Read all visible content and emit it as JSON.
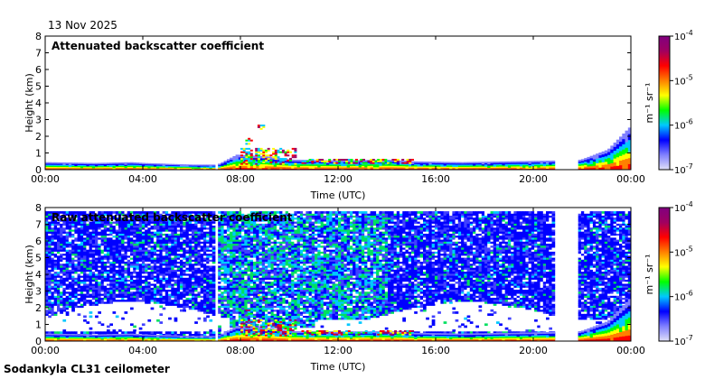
{
  "date": "13 Nov 2025",
  "footer": "Sodankyla CL31 ceilometer",
  "colorbar": {
    "unit": "m⁻¹ sr⁻¹",
    "ticks": [
      {
        "v": -4,
        "base": "10",
        "exp": "-4"
      },
      {
        "v": -5,
        "base": "10",
        "exp": "-5"
      },
      {
        "v": -6,
        "base": "10",
        "exp": "-6"
      },
      {
        "v": -7,
        "base": "10",
        "exp": "-7"
      }
    ],
    "range": [
      -7,
      -4
    ],
    "colors": [
      "#e0e0f8",
      "#8080ff",
      "#0000ff",
      "#00c8ff",
      "#00ff00",
      "#ffff00",
      "#ff8000",
      "#ff0000",
      "#a00060",
      "#800080"
    ]
  },
  "chart_data": [
    {
      "type": "heatmap",
      "title": "Attenuated backscatter coefficient",
      "xlabel": "Time (UTC)",
      "ylabel": "Height (km)",
      "xlim": [
        0,
        24
      ],
      "ylim": [
        0,
        8
      ],
      "xticks": [
        {
          "v": 0,
          "label": "00:00"
        },
        {
          "v": 4,
          "label": "04:00"
        },
        {
          "v": 8,
          "label": "08:00"
        },
        {
          "v": 12,
          "label": "12:00"
        },
        {
          "v": 16,
          "label": "16:00"
        },
        {
          "v": 20,
          "label": "20:00"
        },
        {
          "v": 24,
          "label": "00:00"
        }
      ],
      "yticks": [
        0,
        1,
        2,
        3,
        4,
        5,
        6,
        7,
        8
      ],
      "gaps": [
        [
          2.35,
          2.45
        ],
        [
          7.0,
          7.1
        ],
        [
          20.9,
          21.9
        ]
      ],
      "boundary_layer_top_km": [
        [
          0,
          0.45
        ],
        [
          2,
          0.4
        ],
        [
          3.5,
          0.45
        ],
        [
          4,
          0.4
        ],
        [
          6,
          0.3
        ],
        [
          7,
          0.3
        ],
        [
          7.8,
          0.9
        ],
        [
          9,
          0.8
        ],
        [
          10,
          0.6
        ],
        [
          12,
          0.55
        ],
        [
          14,
          0.6
        ],
        [
          15,
          0.5
        ],
        [
          17,
          0.45
        ],
        [
          19,
          0.5
        ],
        [
          20.9,
          0.55
        ],
        [
          21.9,
          0.6
        ],
        [
          23,
          1.2
        ],
        [
          24,
          2.7
        ]
      ],
      "cloud_features": [
        {
          "t": [
            8.0,
            10.2
          ],
          "h": [
            0.3,
            1.3
          ]
        },
        {
          "t": [
            8.7,
            8.9
          ],
          "h": [
            2.4,
            2.8
          ]
        },
        {
          "t": [
            8.2,
            8.4
          ],
          "h": [
            1.5,
            1.9
          ]
        },
        {
          "t": [
            10.5,
            15.0
          ],
          "h": [
            0.35,
            0.6
          ]
        }
      ]
    },
    {
      "type": "heatmap",
      "title": "Raw attenuated backscatter coefficient",
      "xlabel": "Time (UTC)",
      "ylabel": "Height (km)",
      "xlim": [
        0,
        24
      ],
      "ylim": [
        0,
        8
      ],
      "xticks": [
        {
          "v": 0,
          "label": "00:00"
        },
        {
          "v": 4,
          "label": "04:00"
        },
        {
          "v": 8,
          "label": "08:00"
        },
        {
          "v": 12,
          "label": "12:00"
        },
        {
          "v": 16,
          "label": "16:00"
        },
        {
          "v": 20,
          "label": "20:00"
        },
        {
          "v": 24,
          "label": "00:00"
        }
      ],
      "yticks": [
        0,
        1,
        2,
        3,
        4,
        5,
        6,
        7,
        8
      ],
      "gaps": [
        [
          2.35,
          2.45
        ],
        [
          7.0,
          7.1
        ],
        [
          20.9,
          21.9
        ]
      ],
      "noise_top_km": 7.7,
      "clear_band_km": [
        0.5,
        1.5
      ]
    }
  ]
}
